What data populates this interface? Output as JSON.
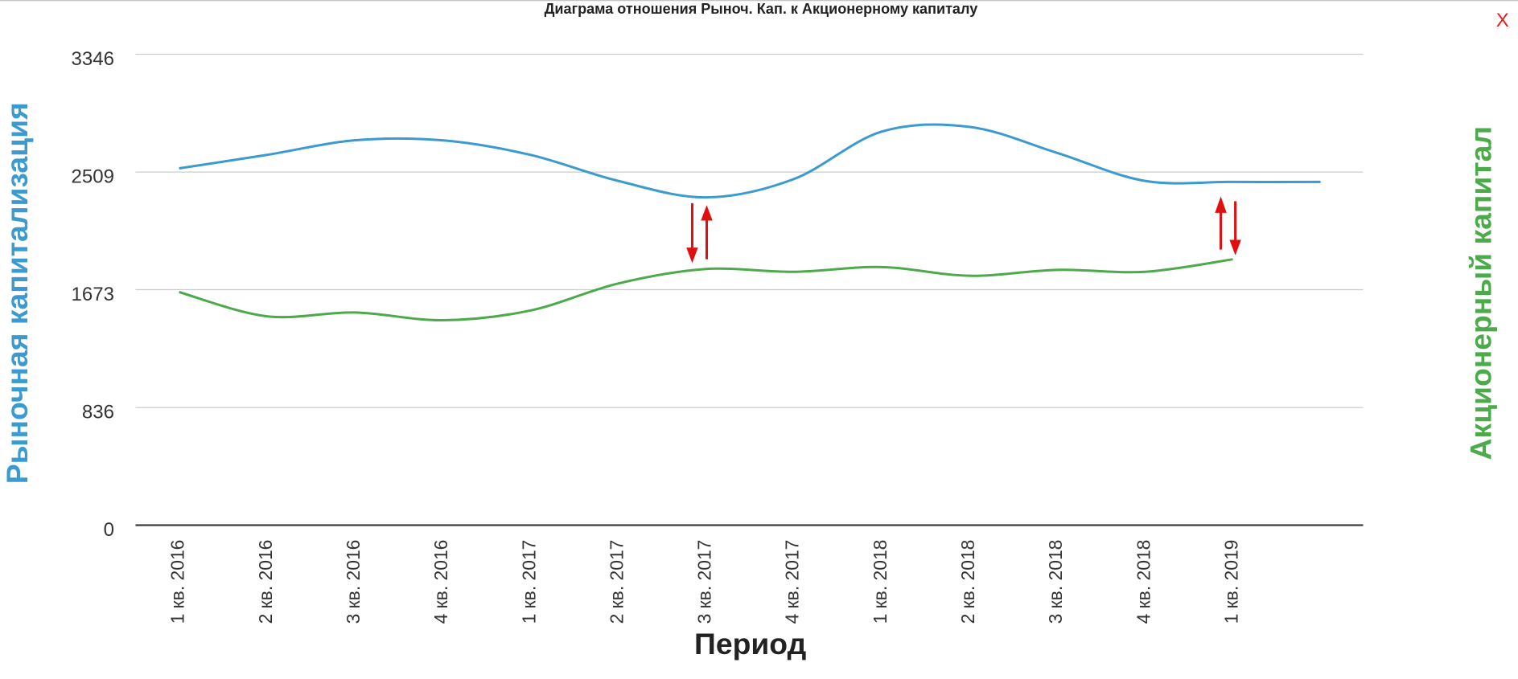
{
  "chart_data": {
    "type": "line",
    "title": "Диаграма отношения Рыноч. Кап. к Акционерному капиталу",
    "x_label": "Период",
    "y_label": "Рыночная капитализация",
    "y2_label": "Акционерный капитал",
    "categories": [
      "1 кв. 2016",
      "2 кв. 2016",
      "3 кв. 2016",
      "4 кв. 2016",
      "1 кв. 2017",
      "2 кв. 2017",
      "3 кв. 2017",
      "4 кв. 2017",
      "1 кв. 2018",
      "2 кв. 2018",
      "3 кв. 2018",
      "4 кв. 2018",
      "1 кв. 2019",
      null
    ],
    "series": [
      {
        "name": "Рыночная капитализация",
        "color": "#3b9ad0",
        "values": [
          2535,
          2631,
          2734,
          2734,
          2631,
          2446,
          2329,
          2459,
          2796,
          2830,
          2645,
          2446,
          2439,
          2439
        ]
      },
      {
        "name": "Акционерный капитал",
        "color": "#4caa4a",
        "values": [
          1656,
          1484,
          1511,
          1456,
          1525,
          1717,
          1820,
          1800,
          1834,
          1772,
          1814,
          1800,
          1889,
          null
        ]
      }
    ],
    "ylim": [
      0,
      3346
    ],
    "yticks": [
      0,
      836,
      1673,
      2509,
      3346
    ],
    "grid": true
  },
  "close_label": "X"
}
